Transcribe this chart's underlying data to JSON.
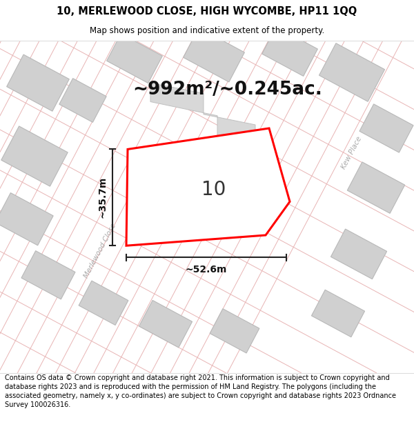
{
  "title_line1": "10, MERLEWOOD CLOSE, HIGH WYCOMBE, HP11 1QQ",
  "title_line2": "Map shows position and indicative extent of the property.",
  "area_text": "~992m²/~0.245ac.",
  "width_label": "~52.6m",
  "height_label": "~35.7m",
  "property_number": "10",
  "street_label": "Merlewood Close",
  "kew_place_label": "Kew Place",
  "copyright_text": "Contains OS data © Crown copyright and database right 2021. This information is subject to Crown copyright and database rights 2023 and is reproduced with the permission of HM Land Registry. The polygons (including the associated geometry, namely x, y co-ordinates) are subject to Crown copyright and database rights 2023 Ordnance Survey 100026316.",
  "bg_color": "#ffffff",
  "map_bg_color": "#faf8f8",
  "road_outline_color": "#e8b4b4",
  "building_fill_color": "#d0d0d0",
  "building_edge_color": "#b8b8b8",
  "property_fill": "#ffffff",
  "property_edge_color": "#ff0000",
  "property_edge_width": 2.2,
  "dim_color": "#222222",
  "title_fontsize": 10.5,
  "subtitle_fontsize": 8.5,
  "area_fontsize": 19,
  "label_fontsize": 10,
  "property_num_fontsize": 20,
  "copyright_fontsize": 7.0,
  "street_label_fontsize": 7.5
}
